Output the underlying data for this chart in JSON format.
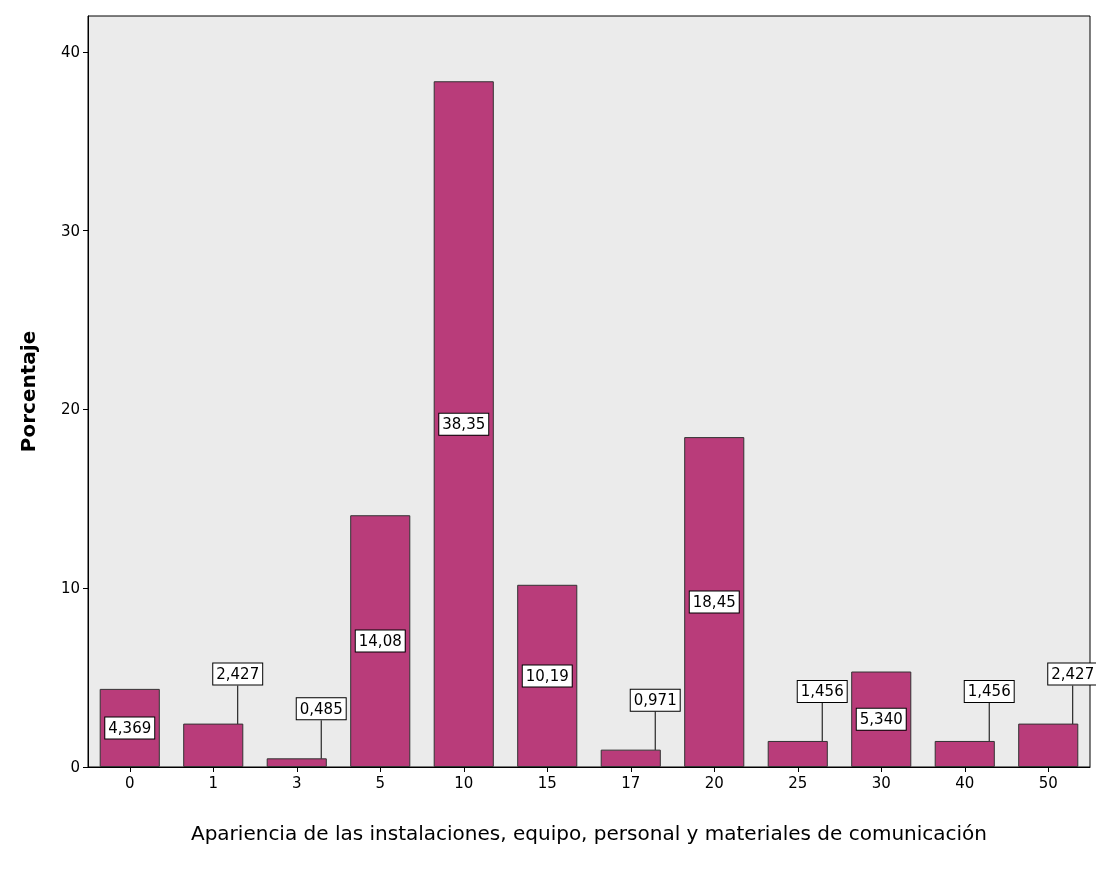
{
  "chart_data": {
    "type": "bar",
    "xlabel": "Apariencia de las instalaciones, equipo, personal y materiales de comunicación",
    "ylabel": "Porcentaje",
    "categories": [
      "0",
      "1",
      "3",
      "5",
      "10",
      "15",
      "17",
      "20",
      "25",
      "30",
      "40",
      "50"
    ],
    "values": [
      4.369,
      2.427,
      0.485,
      14.08,
      38.35,
      10.19,
      0.971,
      18.45,
      1.456,
      5.34,
      1.456,
      2.427
    ],
    "value_labels": [
      "4,369",
      "2,427",
      "0,485",
      "14,08",
      "38,35",
      "10,19",
      "0,971",
      "18,45",
      "1,456",
      "5,340",
      "1,456",
      "2,427"
    ],
    "color": "#b93c7a",
    "ylim": [
      0,
      42
    ],
    "yticks": [
      0,
      10,
      20,
      30,
      40
    ],
    "grid": false
  }
}
